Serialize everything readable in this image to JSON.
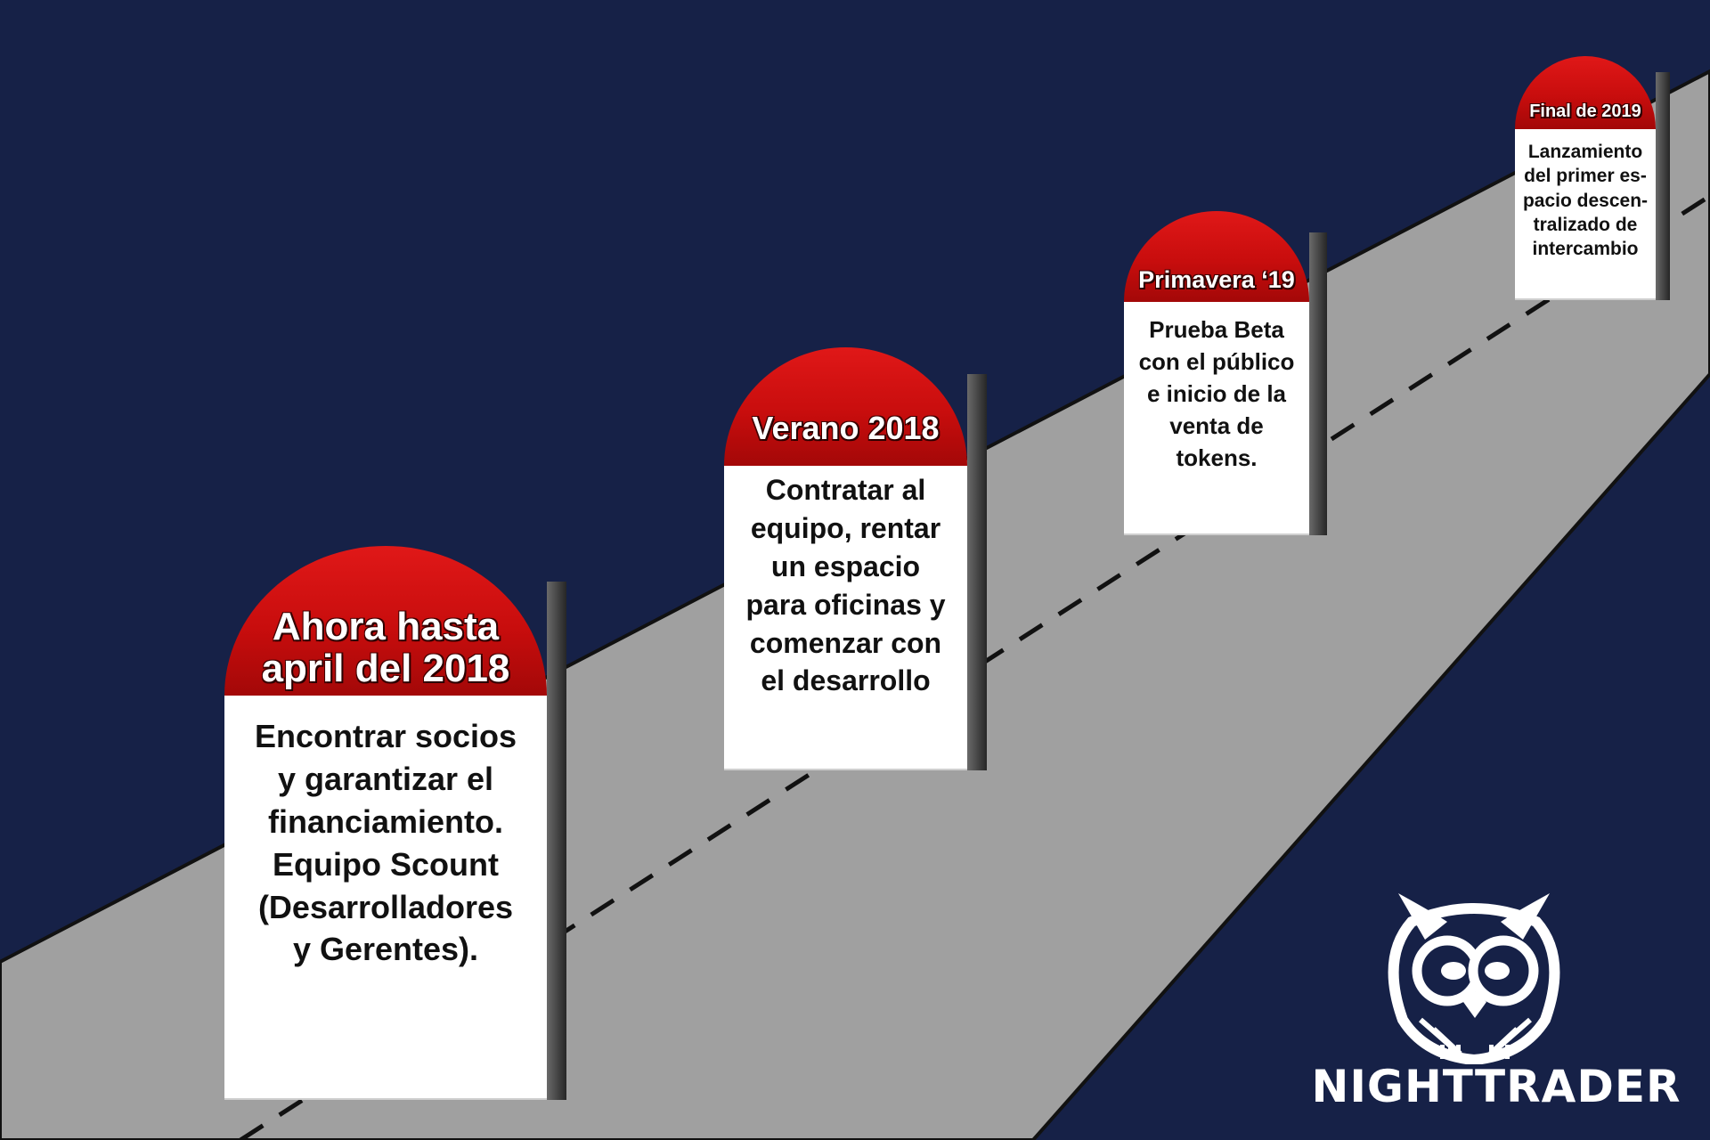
{
  "milestones": [
    {
      "title": "Ahora hasta\napril del 2018",
      "text": "Encontrar socios\ny garantizar el\nfinanciamiento.\nEquipo Scount\n(Desarrolladores\ny Gerentes)."
    },
    {
      "title": "Verano 2018",
      "text": "Contratar al\nequipo, rentar\nun espacio\npara oficinas y\ncomenzar con\nel desarrollo"
    },
    {
      "title": "Primavera ‘19",
      "text": "Prueba Beta\ncon el público\ne inicio de la\nventa de\ntokens."
    },
    {
      "title": "Final de 2019",
      "text": "Lanzamiento\ndel primer es-\npacio descen-\ntralizado de\nintercambio"
    }
  ],
  "logo": {
    "brand": "NIGHTTRADER",
    "icon": "owl-icon"
  },
  "colors": {
    "background": "#162147",
    "road": "#a0a0a0",
    "milestone_cap": "#d01010",
    "milestone_body": "#ffffff",
    "text": "#111111"
  }
}
